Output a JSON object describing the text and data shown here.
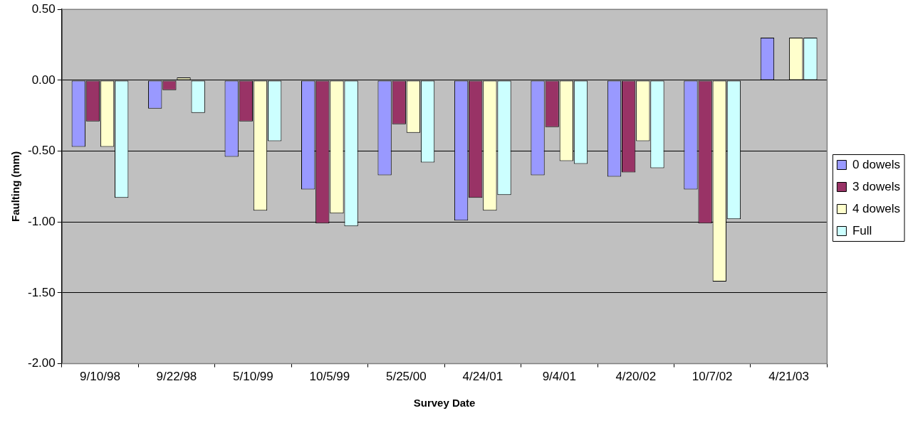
{
  "chart_data": {
    "type": "bar",
    "xlabel": "Survey Date",
    "ylabel": "Faulting (mm)",
    "categories": [
      "9/10/98",
      "9/22/98",
      "5/10/99",
      "10/5/99",
      "5/25/00",
      "4/24/01",
      "9/4/01",
      "4/20/02",
      "10/7/02",
      "4/21/03"
    ],
    "series": [
      {
        "name": "0 dowels",
        "color": "#9999ff",
        "values": [
          -0.47,
          -0.2,
          -0.54,
          -0.77,
          -0.67,
          -0.99,
          -0.67,
          -0.68,
          -0.77,
          0.3
        ]
      },
      {
        "name": "3 dowels",
        "color": "#993366",
        "values": [
          -0.29,
          -0.07,
          -0.29,
          -1.01,
          -0.31,
          -0.83,
          -0.33,
          -0.65,
          -1.01,
          null
        ]
      },
      {
        "name": "4 dowels",
        "color": "#ffffcc",
        "values": [
          -0.47,
          0.02,
          -0.92,
          -0.94,
          -0.37,
          -0.92,
          -0.57,
          -0.43,
          -1.42,
          0.3
        ]
      },
      {
        "name": "Full",
        "color": "#ccffff",
        "values": [
          -0.83,
          -0.23,
          -0.43,
          -1.03,
          -0.58,
          -0.81,
          -0.59,
          -0.62,
          -0.98,
          0.3
        ]
      }
    ],
    "ylim": [
      -2,
      0.5
    ],
    "yticks": [
      {
        "value": -2,
        "label": "-2.00"
      },
      {
        "value": -1.5,
        "label": "-1.50"
      },
      {
        "value": -1,
        "label": "-1.00"
      },
      {
        "value": -0.5,
        "label": "-0.50"
      },
      {
        "value": 0,
        "label": "0.00"
      },
      {
        "value": 0.5,
        "label": "0.50"
      }
    ],
    "grid": "y",
    "legend": "right"
  }
}
